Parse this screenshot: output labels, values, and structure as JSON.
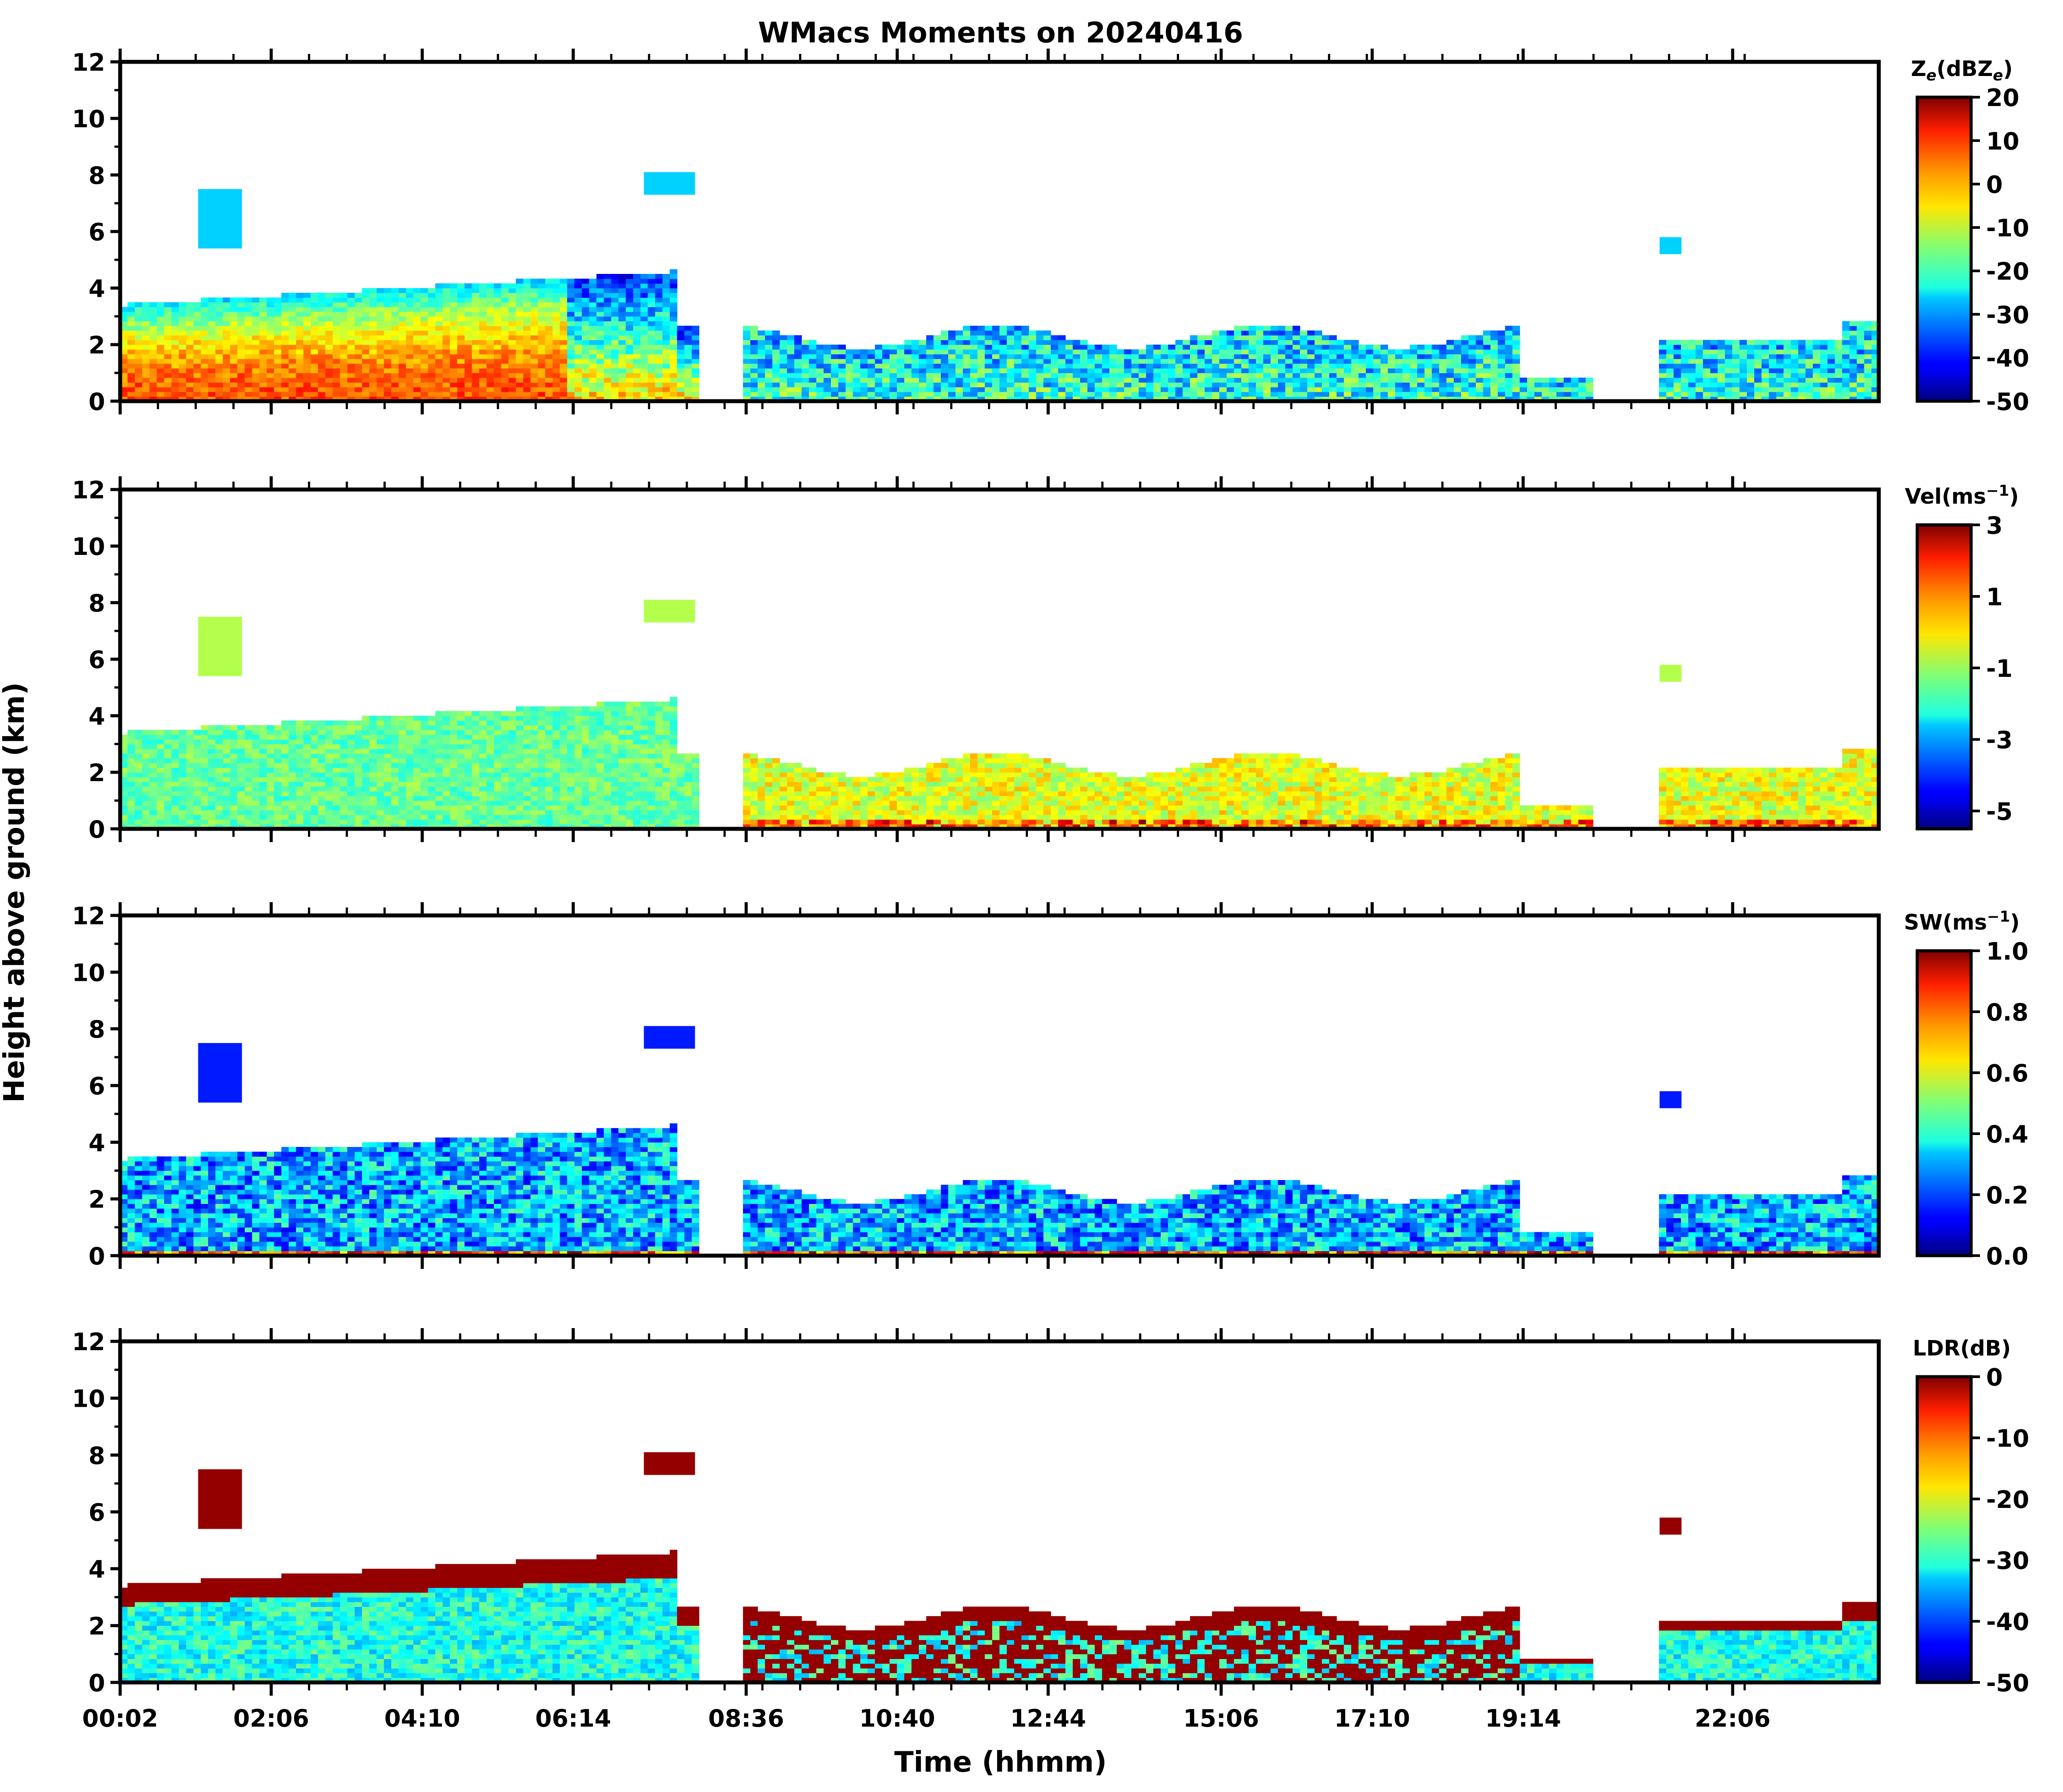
{
  "figure": {
    "title": "WMacs Moments on 20240416",
    "ylabel": "Height above ground (km)",
    "xlabel": "Time (hhmm)"
  },
  "chart_data": [
    {
      "type": "heatmap",
      "panel": "Ze",
      "colorbar_label_main": "Z",
      "colorbar_label_sub": "e",
      "colorbar_label_rest": "(dBZ",
      "colorbar_label_sub2": "e",
      "colorbar_label_close": ")",
      "colorbar_ticks": [
        "20",
        "10",
        "0",
        "-10",
        "-20",
        "-30",
        "-40",
        "-50"
      ],
      "colorbar_range": [
        -50,
        20
      ],
      "colormap": "jet",
      "ylim": [
        0,
        12
      ],
      "yticks": [
        "0",
        "2",
        "4",
        "6",
        "8",
        "10",
        "12"
      ]
    },
    {
      "type": "heatmap",
      "panel": "Vel",
      "colorbar_label_main": "Vel(ms",
      "colorbar_label_sup": "−1",
      "colorbar_label_close": ")",
      "colorbar_ticks": [
        "3",
        "1",
        "-1",
        "-3",
        "-5"
      ],
      "colorbar_range": [
        -5.5,
        3
      ],
      "colormap": "jet",
      "ylim": [
        0,
        12
      ],
      "yticks": [
        "0",
        "2",
        "4",
        "6",
        "8",
        "10",
        "12"
      ]
    },
    {
      "type": "heatmap",
      "panel": "SW",
      "colorbar_label_main": "SW(ms",
      "colorbar_label_sup": "−1",
      "colorbar_label_close": ")",
      "colorbar_ticks": [
        "1.0",
        "0.8",
        "0.6",
        "0.4",
        "0.2",
        "0.0"
      ],
      "colorbar_range": [
        0,
        1
      ],
      "colormap": "jet",
      "ylim": [
        0,
        12
      ],
      "yticks": [
        "0",
        "2",
        "4",
        "6",
        "8",
        "10",
        "12"
      ]
    },
    {
      "type": "heatmap",
      "panel": "LDR",
      "colorbar_label_main": "LDR(dB)",
      "colorbar_ticks": [
        "0",
        "-10",
        "-20",
        "-30",
        "-40",
        "-50"
      ],
      "colorbar_range": [
        -50,
        0
      ],
      "colormap": "jet",
      "ylim": [
        0,
        12
      ],
      "yticks": [
        "0",
        "2",
        "4",
        "6",
        "8",
        "10",
        "12"
      ]
    }
  ],
  "x_axis": {
    "range_hours": [
      0.033,
      24.1
    ],
    "tick_labels": [
      "00:02",
      "02:06",
      "04:10",
      "06:14",
      "08:36",
      "10:40",
      "12:44",
      "15:06",
      "17:10",
      "19:14",
      "22:06"
    ],
    "tick_hours": [
      0.033,
      2.1,
      4.167,
      6.233,
      8.6,
      10.667,
      12.733,
      15.1,
      17.167,
      19.233,
      22.1
    ]
  },
  "colors": {
    "background": "#ffffff",
    "axis": "#000000",
    "missing": "#ffffff"
  }
}
